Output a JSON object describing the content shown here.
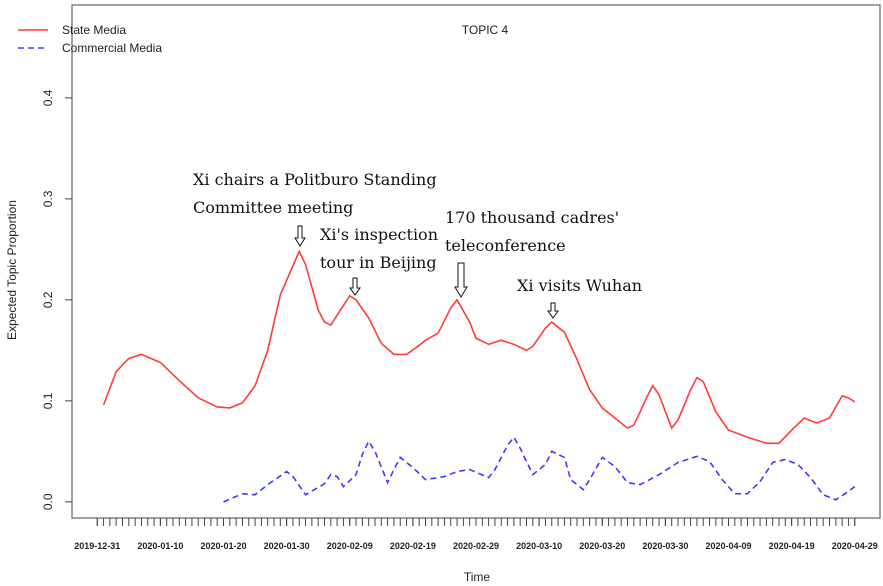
{
  "chart_data": {
    "type": "line",
    "title": "TOPIC 4",
    "x_label": "Time",
    "y_label": "Expected Topic Proportion",
    "xlim": [
      "2019-12-27",
      "2020-05-03"
    ],
    "xticks": [
      "2019-12-31",
      "2020-01-10",
      "2020-01-20",
      "2020-01-30",
      "2020-02-09",
      "2020-02-19",
      "2020-02-29",
      "2020-03-10",
      "2020-03-20",
      "2020-03-30",
      "2020-04-09",
      "2020-04-19",
      "2020-04-29"
    ],
    "ylim": [
      -0.016,
      0.492
    ],
    "yticks": [
      {
        "value": 0,
        "label": "0.0"
      },
      0.1,
      0.2,
      0.3,
      0.4
    ],
    "legend": "top-left",
    "series": [
      {
        "name": "State Media",
        "color": "#ff3b3b",
        "dash": "solid",
        "x": [
          "2020-01-01",
          "2020-01-03",
          "2020-01-05",
          "2020-01-07",
          "2020-01-10",
          "2020-01-13",
          "2020-01-16",
          "2020-01-19",
          "2020-01-21",
          "2020-01-23",
          "2020-01-25",
          "2020-01-27",
          "2020-01-29",
          "2020-02-01",
          "2020-02-02",
          "2020-02-04",
          "2020-02-05",
          "2020-02-06",
          "2020-02-07",
          "2020-02-09",
          "2020-02-10",
          "2020-02-12",
          "2020-02-14",
          "2020-02-16",
          "2020-02-18",
          "2020-02-20",
          "2020-02-21",
          "2020-02-23",
          "2020-02-25",
          "2020-02-26",
          "2020-02-28",
          "2020-02-29",
          "2020-03-02",
          "2020-03-04",
          "2020-03-06",
          "2020-03-08",
          "2020-03-09",
          "2020-03-11",
          "2020-03-12",
          "2020-03-14",
          "2020-03-16",
          "2020-03-18",
          "2020-03-20",
          "2020-03-22",
          "2020-03-24",
          "2020-03-25",
          "2020-03-26",
          "2020-03-27",
          "2020-03-28",
          "2020-03-29",
          "2020-03-31",
          "2020-04-01",
          "2020-04-03",
          "2020-04-04",
          "2020-04-05",
          "2020-04-07",
          "2020-04-09",
          "2020-04-12",
          "2020-04-15",
          "2020-04-17",
          "2020-04-19",
          "2020-04-21",
          "2020-04-23",
          "2020-04-25",
          "2020-04-27",
          "2020-04-28",
          "2020-04-29"
        ],
        "values": [
          0.096,
          0.129,
          0.142,
          0.146,
          0.138,
          0.12,
          0.103,
          0.094,
          0.093,
          0.098,
          0.115,
          0.15,
          0.205,
          0.248,
          0.235,
          0.19,
          0.178,
          0.175,
          0.185,
          0.204,
          0.2,
          0.182,
          0.157,
          0.146,
          0.146,
          0.155,
          0.16,
          0.167,
          0.192,
          0.2,
          0.178,
          0.162,
          0.156,
          0.16,
          0.156,
          0.15,
          0.154,
          0.172,
          0.178,
          0.168,
          0.141,
          0.111,
          0.093,
          0.083,
          0.073,
          0.076,
          0.089,
          0.103,
          0.115,
          0.106,
          0.073,
          0.081,
          0.111,
          0.123,
          0.119,
          0.089,
          0.071,
          0.064,
          0.058,
          0.058,
          0.071,
          0.083,
          0.078,
          0.083,
          0.105,
          0.103,
          0.099
        ]
      },
      {
        "name": "Commercial Media",
        "color": "#3b3bff",
        "dash": "dashed",
        "x": [
          "2020-01-20",
          "2020-01-23",
          "2020-01-25",
          "2020-01-27",
          "2020-01-30",
          "2020-01-31",
          "2020-02-02",
          "2020-02-05",
          "2020-02-06",
          "2020-02-07",
          "2020-02-08",
          "2020-02-10",
          "2020-02-11",
          "2020-02-12",
          "2020-02-13",
          "2020-02-15",
          "2020-02-16",
          "2020-02-17",
          "2020-02-19",
          "2020-02-21",
          "2020-02-24",
          "2020-02-26",
          "2020-02-28",
          "2020-03-02",
          "2020-03-03",
          "2020-03-05",
          "2020-03-06",
          "2020-03-07",
          "2020-03-09",
          "2020-03-11",
          "2020-03-12",
          "2020-03-14",
          "2020-03-15",
          "2020-03-17",
          "2020-03-18",
          "2020-03-20",
          "2020-03-22",
          "2020-03-24",
          "2020-03-26",
          "2020-03-29",
          "2020-04-01",
          "2020-04-04",
          "2020-04-06",
          "2020-04-08",
          "2020-04-10",
          "2020-04-12",
          "2020-04-14",
          "2020-04-16",
          "2020-04-18",
          "2020-04-20",
          "2020-04-22",
          "2020-04-24",
          "2020-04-26",
          "2020-04-27",
          "2020-04-29"
        ],
        "values": [
          0.0,
          0.008,
          0.007,
          0.017,
          0.03,
          0.025,
          0.007,
          0.018,
          0.027,
          0.025,
          0.015,
          0.027,
          0.047,
          0.06,
          0.05,
          0.019,
          0.032,
          0.044,
          0.034,
          0.022,
          0.025,
          0.03,
          0.032,
          0.024,
          0.032,
          0.056,
          0.064,
          0.053,
          0.027,
          0.037,
          0.05,
          0.044,
          0.022,
          0.012,
          0.022,
          0.044,
          0.035,
          0.019,
          0.017,
          0.027,
          0.039,
          0.045,
          0.04,
          0.022,
          0.008,
          0.008,
          0.02,
          0.039,
          0.042,
          0.037,
          0.024,
          0.007,
          0.002,
          0.006,
          0.015
        ]
      }
    ],
    "annotations": [
      {
        "lines": [
          "Xi chairs a Politburo Standing",
          "Committee meeting"
        ]
      },
      {
        "lines": [
          "Xi's inspection",
          "tour in Beijing"
        ]
      },
      {
        "lines": [
          "170 thousand cadres'",
          "teleconference"
        ]
      },
      {
        "lines": [
          "Xi visits Wuhan"
        ]
      }
    ]
  }
}
